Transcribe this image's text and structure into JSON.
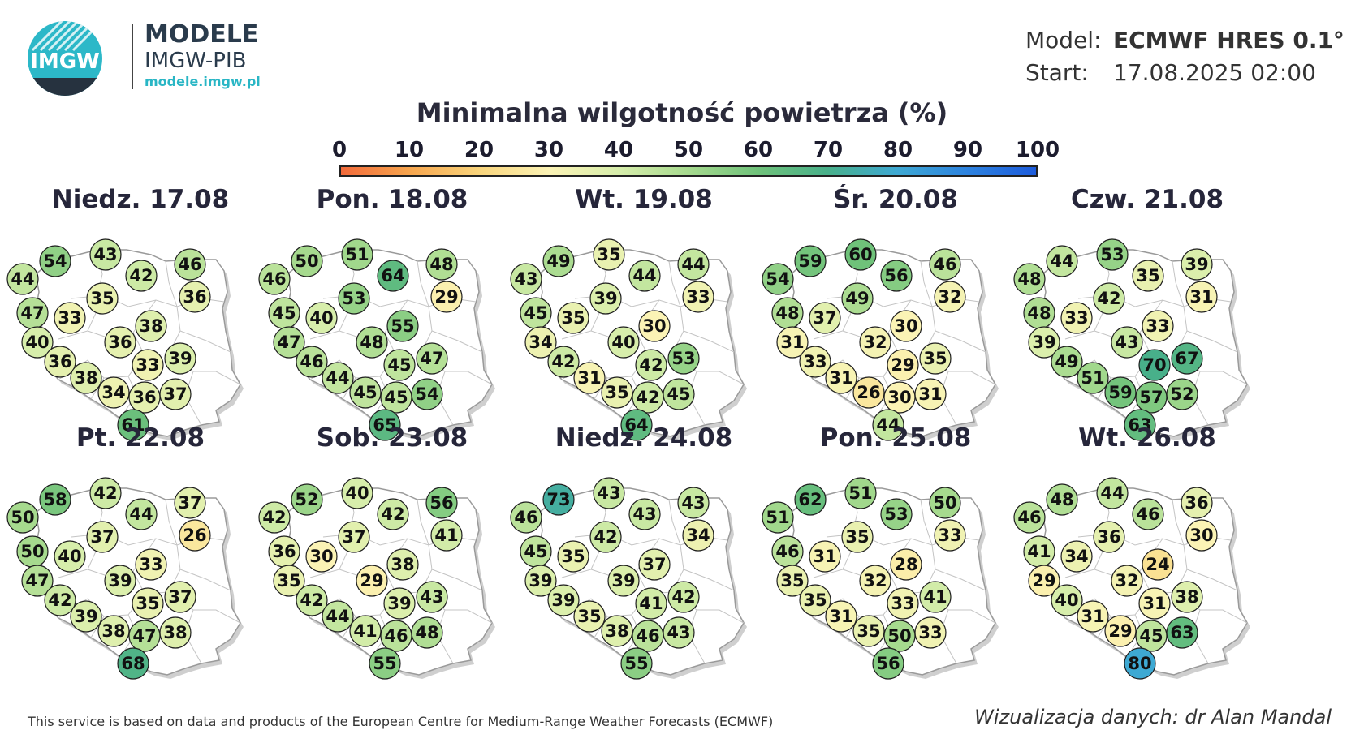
{
  "logo": {
    "letters": "IMGW",
    "title": "MODELE",
    "subtitle": "IMGW-PIB",
    "url": "modele.imgw.pl"
  },
  "info": {
    "model_label": "Model:",
    "model_value": "ECMWF HRES 0.1°",
    "start_label": "Start:",
    "start_value": "17.08.2025 02:00"
  },
  "title": "Minimalna wilgotność powietrza (%)",
  "scale": {
    "ticks": [
      "0",
      "10",
      "20",
      "30",
      "40",
      "50",
      "60",
      "70",
      "80",
      "90",
      "100"
    ],
    "colors": [
      "#f26a3a",
      "#f7a64e",
      "#f9d57c",
      "#fbf3b5",
      "#d7eeab",
      "#a6da8e",
      "#6fc27a",
      "#48b08a",
      "#3ea9d3",
      "#2d83df",
      "#1d5cdc"
    ]
  },
  "panels": [
    {
      "day": "Niedz. 17.08",
      "values": [
        54,
        43,
        46,
        44,
        42,
        36,
        35,
        47,
        33,
        38,
        40,
        36,
        36,
        33,
        39,
        38,
        34,
        36,
        37,
        61
      ]
    },
    {
      "day": "Pon. 18.08",
      "values": [
        50,
        51,
        48,
        46,
        64,
        29,
        53,
        45,
        40,
        55,
        47,
        48,
        46,
        45,
        47,
        44,
        45,
        45,
        54,
        65
      ]
    },
    {
      "day": "Wt. 19.08",
      "values": [
        49,
        35,
        44,
        43,
        44,
        33,
        39,
        45,
        35,
        30,
        34,
        40,
        42,
        42,
        53,
        31,
        35,
        42,
        45,
        64
      ]
    },
    {
      "day": "Śr. 20.08",
      "values": [
        59,
        60,
        46,
        54,
        56,
        32,
        49,
        48,
        37,
        30,
        31,
        32,
        33,
        29,
        35,
        31,
        26,
        30,
        31,
        44
      ]
    },
    {
      "day": "Czw. 21.08",
      "values": [
        44,
        53,
        39,
        48,
        35,
        31,
        42,
        48,
        33,
        33,
        39,
        43,
        49,
        70,
        67,
        51,
        59,
        57,
        52,
        63
      ]
    },
    {
      "day": "Pt. 22.08",
      "values": [
        58,
        42,
        37,
        50,
        44,
        26,
        37,
        50,
        40,
        33,
        47,
        39,
        42,
        35,
        37,
        39,
        38,
        47,
        38,
        68
      ]
    },
    {
      "day": "Sob. 23.08",
      "values": [
        52,
        40,
        56,
        42,
        42,
        41,
        37,
        36,
        30,
        38,
        35,
        29,
        42,
        39,
        43,
        44,
        41,
        46,
        48,
        55
      ]
    },
    {
      "day": "Niedz. 24.08",
      "values": [
        73,
        43,
        43,
        46,
        43,
        34,
        42,
        45,
        35,
        37,
        39,
        39,
        39,
        41,
        42,
        35,
        38,
        46,
        43,
        55
      ]
    },
    {
      "day": "Pon. 25.08",
      "values": [
        62,
        51,
        50,
        51,
        53,
        33,
        35,
        46,
        31,
        28,
        35,
        32,
        35,
        33,
        41,
        31,
        35,
        50,
        33,
        56
      ]
    },
    {
      "day": "Wt. 26.08",
      "values": [
        48,
        44,
        36,
        46,
        46,
        30,
        36,
        41,
        34,
        24,
        29,
        32,
        40,
        31,
        38,
        31,
        29,
        45,
        63,
        80
      ]
    }
  ],
  "footer": {
    "left": "This service is based on data and products of the European Centre for Medium-Range Weather Forecasts (ECMWF)",
    "right": "Wizualizacja danych: dr Alan Mandal"
  }
}
